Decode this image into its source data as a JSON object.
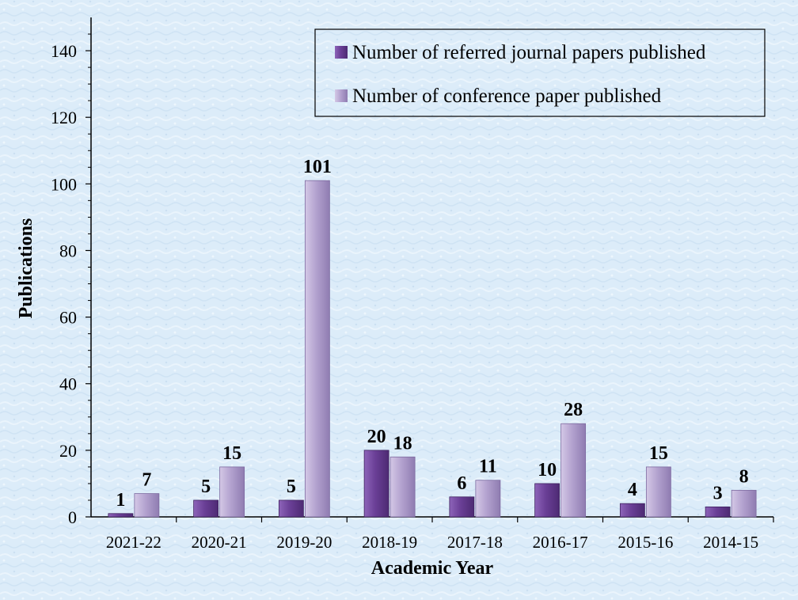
{
  "chart_data": {
    "type": "bar",
    "xlabel": "Academic Year",
    "ylabel": "Publications",
    "ylim": [
      0,
      150
    ],
    "yticks": [
      0,
      20,
      40,
      60,
      80,
      100,
      120,
      140
    ],
    "categories": [
      "2021-22",
      "2020-21",
      "2019-20",
      "2018-19",
      "2017-18",
      "2016-17",
      "2015-16",
      "2014-15"
    ],
    "series": [
      {
        "name": "Number of referred journal papers published",
        "color": "#6a3f96",
        "values": [
          1,
          5,
          5,
          20,
          6,
          10,
          4,
          3
        ]
      },
      {
        "name": "Number of conference paper published",
        "color": "#b3a2cf",
        "values": [
          7,
          15,
          101,
          18,
          11,
          28,
          15,
          8
        ]
      }
    ],
    "legend_position": "top-right",
    "grid": false
  }
}
